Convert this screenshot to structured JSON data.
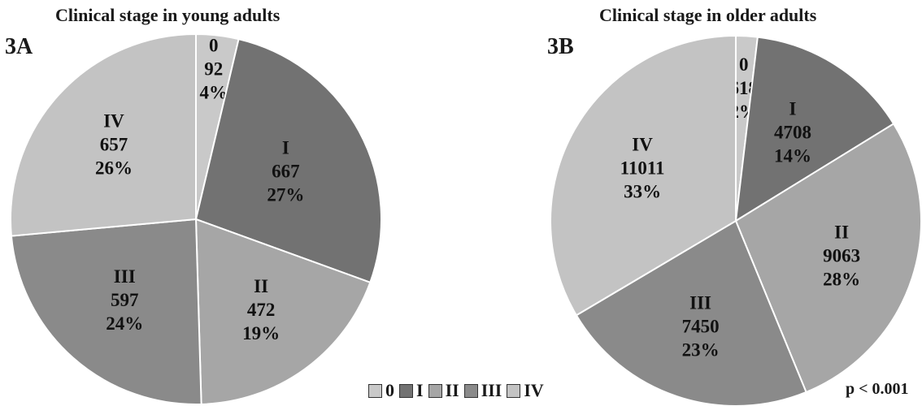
{
  "chart_data": [
    {
      "type": "pie",
      "panel": "3A",
      "title": "Clinical stage in young adults",
      "categories": [
        "0",
        "I",
        "II",
        "III",
        "IV"
      ],
      "values": [
        92,
        667,
        472,
        597,
        657
      ],
      "percent_labels": [
        "4%",
        "27%",
        "19%",
        "24%",
        "26%"
      ],
      "start": "12 o'clock",
      "direction": "clockwise"
    },
    {
      "type": "pie",
      "panel": "3B",
      "title": "Clinical stage in older adults",
      "categories": [
        "0",
        "I",
        "II",
        "III",
        "IV"
      ],
      "values": [
        618,
        4708,
        9063,
        7450,
        11011
      ],
      "percent_labels": [
        "2%",
        "14%",
        "28%",
        "23%",
        "33%"
      ],
      "start": "12 o'clock",
      "direction": "clockwise"
    }
  ],
  "colors": {
    "0": "#c9c9c9",
    "I": "#727272",
    "II": "#a6a6a6",
    "III": "#8a8a8a",
    "IV": "#c3c3c3",
    "edge": "#ffffff",
    "label": "#111111"
  },
  "legend": {
    "placement": "bottom-center",
    "items": [
      "0",
      "I",
      "II",
      "III",
      "IV"
    ]
  },
  "annotation": "p < 0.001"
}
